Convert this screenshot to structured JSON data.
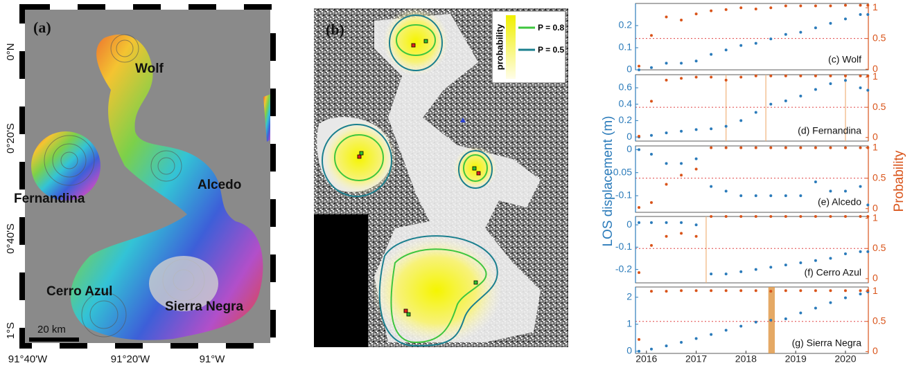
{
  "panel_a": {
    "label": "(a)",
    "places": [
      "Wolf",
      "Fernandina",
      "Alcedo",
      "Cerro Azul",
      "Sierra Negra"
    ],
    "scale_bar": "20 km",
    "lat_labels": [
      "0°N",
      "0°20'S",
      "0°40'S",
      "1°S"
    ],
    "lon_labels": [
      "91°40'W",
      "91°20'W",
      "91°W"
    ]
  },
  "panel_b": {
    "label": "(b)",
    "legend_title": "probability",
    "legend": [
      "P = 0.8",
      "P = 0.5"
    ]
  },
  "figure": {
    "ylabel": "LOS displacement (m)",
    "y2label": "Probability"
  },
  "chart_data": [
    {
      "type": "scatter",
      "title": "(c) Wolf",
      "xlim": [
        2015.78,
        2020.46
      ],
      "ylim": [
        0,
        0.3
      ],
      "yticks": [
        0,
        0.1,
        0.2
      ],
      "y2lim": [
        -0.01,
        1.07
      ],
      "y2ticks": [
        0,
        0.5,
        1
      ],
      "threshold": 0.5,
      "x": [
        2015.85,
        2016.1,
        2016.4,
        2016.7,
        2017.0,
        2017.3,
        2017.6,
        2017.9,
        2018.2,
        2018.5,
        2018.8,
        2019.1,
        2019.4,
        2019.7,
        2020.0,
        2020.3,
        2020.45
      ],
      "series": [
        {
          "color": "#2b7bba",
          "values": [
            0,
            0.01,
            0.03,
            0.03,
            0.04,
            0.07,
            0.09,
            0.11,
            0.12,
            0.14,
            0.16,
            0.17,
            0.19,
            0.21,
            0.23,
            0.25,
            0.25
          ]
        },
        {
          "color": "#d9541a",
          "axis": "y2",
          "values": [
            0.05,
            0.55,
            0.85,
            0.8,
            0.9,
            0.95,
            0.97,
            1,
            0.98,
            1,
            1.03,
            1.03,
            1.03,
            1.03,
            1.04,
            1.04,
            1.04
          ]
        }
      ]
    },
    {
      "type": "scatter",
      "title": "(d) Fernandina",
      "xlim": [
        2015.78,
        2020.46
      ],
      "ylim": [
        -0.05,
        0.76
      ],
      "yticks": [
        0,
        0.2,
        0.4,
        0.6
      ],
      "y2lim": [
        -0.06,
        1.04
      ],
      "y2ticks": [
        0,
        0.5,
        1
      ],
      "threshold": 0.5,
      "change_points": [
        2017.6,
        2018.4,
        2020.0
      ],
      "x": [
        2015.85,
        2016.1,
        2016.4,
        2016.7,
        2017.0,
        2017.3,
        2017.6,
        2017.9,
        2018.2,
        2018.5,
        2018.8,
        2019.1,
        2019.4,
        2019.7,
        2020.0,
        2020.3,
        2020.45
      ],
      "series": [
        {
          "color": "#2b7bba",
          "values": [
            0,
            0.02,
            0.05,
            0.07,
            0.09,
            0.1,
            0.13,
            0.2,
            0.3,
            0.4,
            0.44,
            0.5,
            0.58,
            0.65,
            0.69,
            0.6,
            0.57
          ]
        },
        {
          "color": "#d9541a",
          "axis": "y2",
          "values": [
            0.02,
            0.6,
            0.95,
            0.98,
            1,
            1,
            0.95,
            1,
            1.02,
            1.02,
            1.02,
            1.02,
            1.02,
            1.02,
            1.02,
            1.02,
            1.02
          ]
        }
      ]
    },
    {
      "type": "scatter",
      "title": "(e) Alcedo",
      "xlim": [
        2015.78,
        2020.46
      ],
      "ylim": [
        -0.136,
        0.008
      ],
      "yticks": [
        -0.1,
        -0.05,
        0
      ],
      "y2lim": [
        -0.06,
        1.03
      ],
      "y2ticks": [
        0,
        0.5,
        1
      ],
      "threshold": 0.5,
      "x": [
        2015.85,
        2016.1,
        2016.4,
        2016.7,
        2017.0,
        2017.3,
        2017.6,
        2017.9,
        2018.2,
        2018.5,
        2018.8,
        2019.1,
        2019.4,
        2019.7,
        2020.0,
        2020.3,
        2020.45
      ],
      "series": [
        {
          "color": "#2b7bba",
          "values": [
            0,
            -0.01,
            -0.03,
            -0.03,
            -0.02,
            -0.08,
            -0.09,
            -0.1,
            -0.1,
            -0.1,
            -0.1,
            -0.1,
            -0.07,
            -0.09,
            -0.09,
            -0.08,
            -0.12
          ]
        },
        {
          "color": "#d9541a",
          "axis": "y2",
          "values": [
            0.02,
            0.1,
            0.4,
            0.55,
            0.65,
            1,
            1,
            1,
            1,
            1,
            1,
            1,
            1,
            1,
            1,
            1,
            1
          ]
        }
      ]
    },
    {
      "type": "scatter",
      "title": "(f) Cerro Azul",
      "xlim": [
        2015.78,
        2020.46
      ],
      "ylim": [
        -0.26,
        0.0375
      ],
      "yticks": [
        -0.2,
        -0.1,
        0
      ],
      "y2lim": [
        -0.07,
        1.03
      ],
      "y2ticks": [
        0,
        0.5,
        1
      ],
      "threshold": 0.5,
      "change_points": [
        2017.2
      ],
      "x": [
        2015.85,
        2016.1,
        2016.4,
        2016.7,
        2017.0,
        2017.3,
        2017.6,
        2017.9,
        2018.2,
        2018.5,
        2018.8,
        2019.1,
        2019.4,
        2019.7,
        2020.0,
        2020.3,
        2020.45
      ],
      "series": [
        {
          "color": "#2b7bba",
          "values": [
            0.01,
            0.01,
            0.01,
            0.01,
            0,
            -0.22,
            -0.22,
            -0.21,
            -0.2,
            -0.19,
            -0.18,
            -0.17,
            -0.16,
            -0.15,
            -0.13,
            -0.12,
            -0.12
          ]
        },
        {
          "color": "#d9541a",
          "axis": "y2",
          "values": [
            0.1,
            0.55,
            0.7,
            0.75,
            0.7,
            1.03,
            1.03,
            1.03,
            1.03,
            1.03,
            1.03,
            1.03,
            1.03,
            1.03,
            1.03,
            1.03,
            1.03
          ]
        }
      ]
    },
    {
      "type": "scatter",
      "title": "(g) Sierra Negra",
      "xlim": [
        2015.78,
        2020.46
      ],
      "xticks": [
        2016,
        2017,
        2018,
        2019,
        2020
      ],
      "ylim": [
        -0.08,
        2.38
      ],
      "yticks": [
        0,
        1,
        2
      ],
      "y2lim": [
        -0.03,
        1.07
      ],
      "y2ticks": [
        0,
        0.5,
        1
      ],
      "threshold": 0.5,
      "event_span": [
        2018.45,
        2018.58
      ],
      "x": [
        2015.85,
        2016.1,
        2016.4,
        2016.7,
        2017.0,
        2017.3,
        2017.6,
        2017.9,
        2018.2,
        2018.5,
        2018.8,
        2019.1,
        2019.4,
        2019.7,
        2020.0,
        2020.3,
        2020.45
      ],
      "series": [
        {
          "color": "#2b7bba",
          "values": [
            0,
            0.08,
            0.2,
            0.33,
            0.47,
            0.62,
            0.78,
            0.93,
            1.08,
            1.15,
            1.2,
            1.42,
            1.6,
            1.8,
            1.98,
            2.12,
            2.2
          ]
        },
        {
          "color": "#d9541a",
          "axis": "y2",
          "values": [
            0.2,
            1,
            1,
            1.01,
            1.01,
            1.01,
            1.01,
            1.01,
            1.01,
            1,
            1.01,
            1.01,
            1.01,
            1.01,
            1.01,
            1.01,
            1.01
          ]
        }
      ]
    }
  ]
}
